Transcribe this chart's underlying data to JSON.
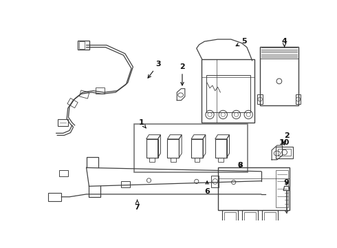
{
  "background": "#ffffff",
  "line_color": "#404040",
  "label_color": "#111111",
  "figsize": [
    4.9,
    3.6
  ],
  "dpi": 100
}
